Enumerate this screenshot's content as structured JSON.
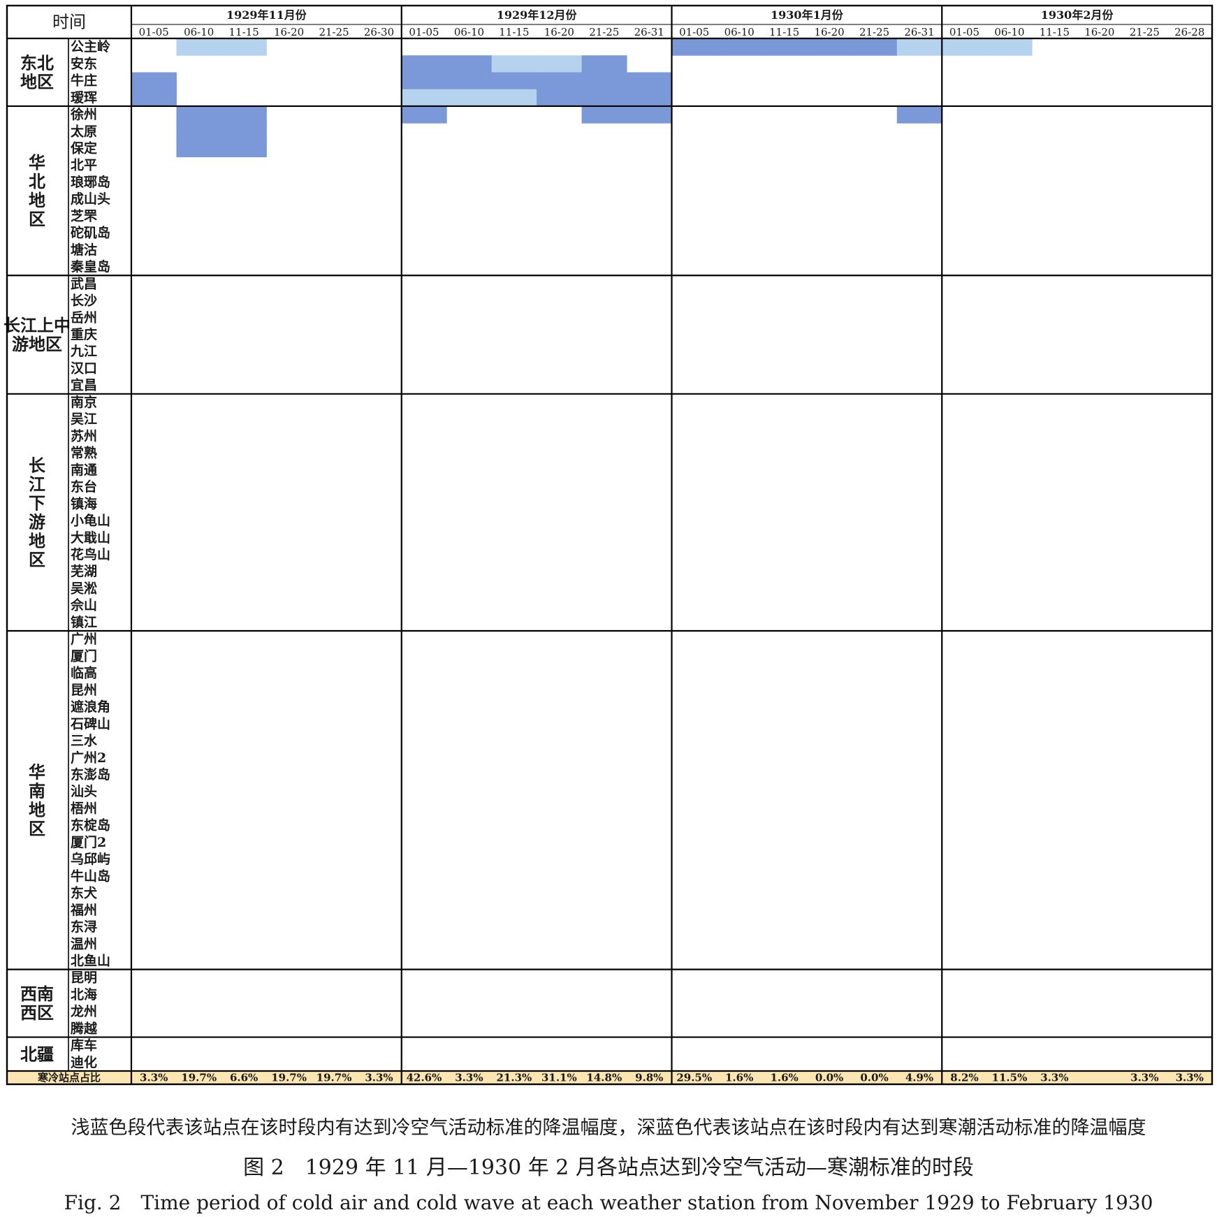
{
  "chart_data": {
    "type": "heatmap",
    "corner_label": "时间",
    "months": [
      "1929年11月份",
      "1929年12月份",
      "1930年1月份",
      "1930年2月份"
    ],
    "periods": [
      [
        "01-05",
        "06-10",
        "11-15",
        "16-20",
        "21-25",
        "26-30"
      ],
      [
        "01-05",
        "06-10",
        "11-15",
        "16-20",
        "21-25",
        "26-31"
      ],
      [
        "01-05",
        "06-10",
        "11-15",
        "16-20",
        "21-25",
        "26-31"
      ],
      [
        "01-05",
        "06-10",
        "11-15",
        "16-20",
        "21-25",
        "26-28"
      ]
    ],
    "regions": [
      {
        "name": "东北\n地区",
        "stations": [
          "公主岭",
          "安东",
          "牛庄",
          "瑷珲"
        ]
      },
      {
        "name": "华\n北\n地\n区",
        "stations": [
          "徐州",
          "太原",
          "保定",
          "北平",
          "琅琊岛",
          "成山头",
          "芝罘",
          "砣矶岛",
          "塘沽",
          "秦皇岛"
        ]
      },
      {
        "name": "长江上中\n游地区",
        "stations": [
          "武昌",
          "长沙",
          "岳州",
          "重庆",
          "九江",
          "汉口",
          "宜昌"
        ]
      },
      {
        "name": "长\n江\n下\n游\n地\n区",
        "stations": [
          "南京",
          "吴江",
          "苏州",
          "常熟",
          "南通",
          "东台",
          "镇海",
          "小龟山",
          "大戢山",
          "花鸟山",
          "芜湖",
          "吴淞",
          "佘山",
          "镇江"
        ]
      },
      {
        "name": "华\n南\n地\n区",
        "stations": [
          "广州",
          "厦门",
          "临高",
          "昆州",
          "遮浪角",
          "石碑山",
          "三水",
          "广州2",
          "东澎岛",
          "汕头",
          "梧州",
          "东椗岛",
          "厦门2",
          "乌邱屿",
          "牛山岛",
          "东犬",
          "福州",
          "东浔",
          "温州",
          "北鱼山"
        ]
      },
      {
        "name": "西南\n西区",
        "stations": [
          "昆明",
          "北海",
          "龙州",
          "腾越"
        ]
      },
      {
        "name": "北疆",
        "stations": [
          "库车",
          "迪化"
        ]
      }
    ],
    "legend": {
      "1": "冷空气活动",
      "2": "寒潮"
    },
    "colors": {
      "cold_air": "#b5d3ee",
      "cold_wave": "#7b98d8",
      "footer_bg": "#fbe6b1",
      "grid": "#000000"
    },
    "rows": [
      "011000000000222221110000000000000002222220000000000000000000000000000000000000000000000000",
      "000000221120000000000000000001220000222200000000000000000000000000000000000000000000000000",
      "200000222222000000000000000000000000000000000000000000000000000000000000000000000000000000",
      "200000111222000000000000000000000000000000000000000000000000000000000000000000000000000000",
      "022000200022000002000000000000000000000000000000000000000000000000000000000000000000000000",
      "022000000000000000000000000000000000000000000000000000000000000000000000000000000000000000",
      "022000000000000000000000000000000000000000000000000000000000000000000000000000000000000000",
      "000000000000000000000000000000000000000000000000000000000000000000000000000000000000000000",
      "000000000000000000000000000000000000000000000000000000000000000000000000000000000000000000",
      "000000000000000000000000000000000000000000000000000000000000000000000000000000000000000000",
      "000000000000000000000000000000000000000000000000000000000000000000000000000000000000000000",
      "000000000000000000000000000000000000000000000000000000000000000000000000000000000000000000",
      "000000000000000000000000000000000000000000000000000000000000000000000000000000000000000000",
      "000000000000000000000000000000000000000000000000000000000000000000000000000000000000000000",
      "000000000000000000000000000000000000000000000000000000000000000000000000000000000000000000",
      "000000000000000000000000000000000000000000000000000000000000000000000000000000000000000000",
      "000000000000000000000000000000000000000000000000000000000000000000000000000000000000000000",
      "000000000000000000000000000000000000000000000000000000000000000000000000000000000000000000",
      "000000000000000000000000000000000000000000000000000000000000000000000000000000000000000000",
      "000000000000000000000000000000000000000000000000000000000000000000000000000000000000000000",
      "000000000000000000000000000000000000000000000000000000000000000000000000000000000000000000",
      "000000000000000000000000000000000000000000000000000000000000000000000000000000000000000000",
      "000000000000000000000000000000000000000000000000000000000000000000000000000000000000000000",
      "000000000000000000000000000000000000000000000000000000000000000000000000000000000000000000",
      "000000000000000000000000000000000000000000000000000000000000000000000000000000000000000000",
      "000000000000000000000000000000000000000000000000000000000000000000000000000000000000000000",
      "000000000000000000000000000000000000000000000000000000000000000000000000000000000000000000",
      "000000000000000000000000000000000000000000000000000000000000000000000000000000000000000000",
      "000000000000000000000000000000000000000000000000000000000000000000000000000000000000000000",
      "000000000000000000000000000000000000000000000000000000000000000000000000000000000000000000",
      "000000000000000000000000000000000000000000000000000000000000000000000000000000000000000000",
      "000000000000000000000000000000000000000000000000000000000000000000000000000000000000000000",
      "000000000000000000000000000000000000000000000000000000000000000000000000000000000000000000",
      "000000000000000000000000000000000000000000000000000000000000000000000000000000000000000000",
      "000000000000000000000000000000000000000000000000000000000000000000000000000000000000000000",
      "000000000000000000000000000000000000000000000000000000000000000000000000000000000000000000",
      "000000000000000000000000000000000000000000000000000000000000000000000000000000000000000000",
      "000000000000000000000000000000000000000000000000000000000000000000000000000000000000000000",
      "000000000000000000000000000000000000000000000000000000000000000000000000000000000000000000",
      "000000000000000000000000000000000000000000000000000000000000000000000000000000000000000000",
      "000000000000000000000000000000000000000000000000000000000000000000000000000000000000000000",
      "000000000000000000000000000000000000000000000000000000000000000000000000000000000000000000",
      "000000000000000000000000000000000000000000000000000000000000000000000000000000000000000000",
      "000000000000000000000000000000000000000000000000000000000000000000000000000000000000000000",
      "000000000000000000000000000000000000000000000000000000000000000000000000000000000000000000",
      "000000000000000000000000000000000000000000000000000000000000000000000000000000000000000000",
      "000000000000000000000000000000000000000000000000000000000000000000000000000000000000000000",
      "000000000000000000000000000000000000000000000000000000000000000000000000000000000000000000",
      "000000000000000000000000000000000000000000000000000000000000000000000000000000000000000000",
      "000000000000000000000000000000000000000000000000000000000000000000000000000000000000000000",
      "000000000000000000000000000000000000000000000000000000000000000000000000000000000000000000",
      "000000000000000000000000000000000000000000000000000000000000000000000000000000000000000000",
      "000000000000000000000000000000000000000000000000000000000000000000000000000000000000000000",
      "000000000000000000000000000000000000000000000000000000000000000000000000000000000000000000",
      "000000000000000000000000000000000000000000000000000000000000000000000000000000000000000000",
      "000000000000000000000000000000000000000000000000000000000000000000000000000000000000000000",
      "000000000000000000000000000000000000000000000000000000000000000000000000000000000000000000",
      "000000000000000000000000000000000000000000000000000000000000000000000000000000000000000000",
      "000000000000000000000000000000000000000000000000000000000000000000000000000000000000000000",
      "000000000000000000000000000000000000000000000000000000000000000000000000000000000000000000",
      "000000000000000000000000000000000000000000000000000000000000000000000000000000000000000000"
    ],
    "footer": {
      "label": "寒冷站点占比",
      "values": [
        [
          "3.3%",
          "19.7%",
          "6.6%",
          "19.7%",
          "19.7%",
          "3.3%"
        ],
        [
          "42.6%",
          "3.3%",
          "21.3%",
          "31.1%",
          "14.8%",
          "9.8%"
        ],
        [
          "29.5%",
          "1.6%",
          "1.6%",
          "0.0%",
          "0.0%",
          "4.9%"
        ],
        [
          "8.2%",
          "11.5%",
          "3.3%",
          "",
          "3.3%",
          "3.3%"
        ]
      ]
    }
  },
  "captions": {
    "note": "浅蓝色段代表该站点在该时段内有达到冷空气活动标准的降温幅度，深蓝色代表该站点在该时段内有达到寒潮活动标准的降温幅度",
    "title_zh": "图 2　1929 年 11 月—1930 年 2 月各站点达到冷空气活动—寒潮标准的时段",
    "title_en": "Fig. 2　Time period of cold air and cold wave at each weather station from November 1929 to February 1930"
  }
}
